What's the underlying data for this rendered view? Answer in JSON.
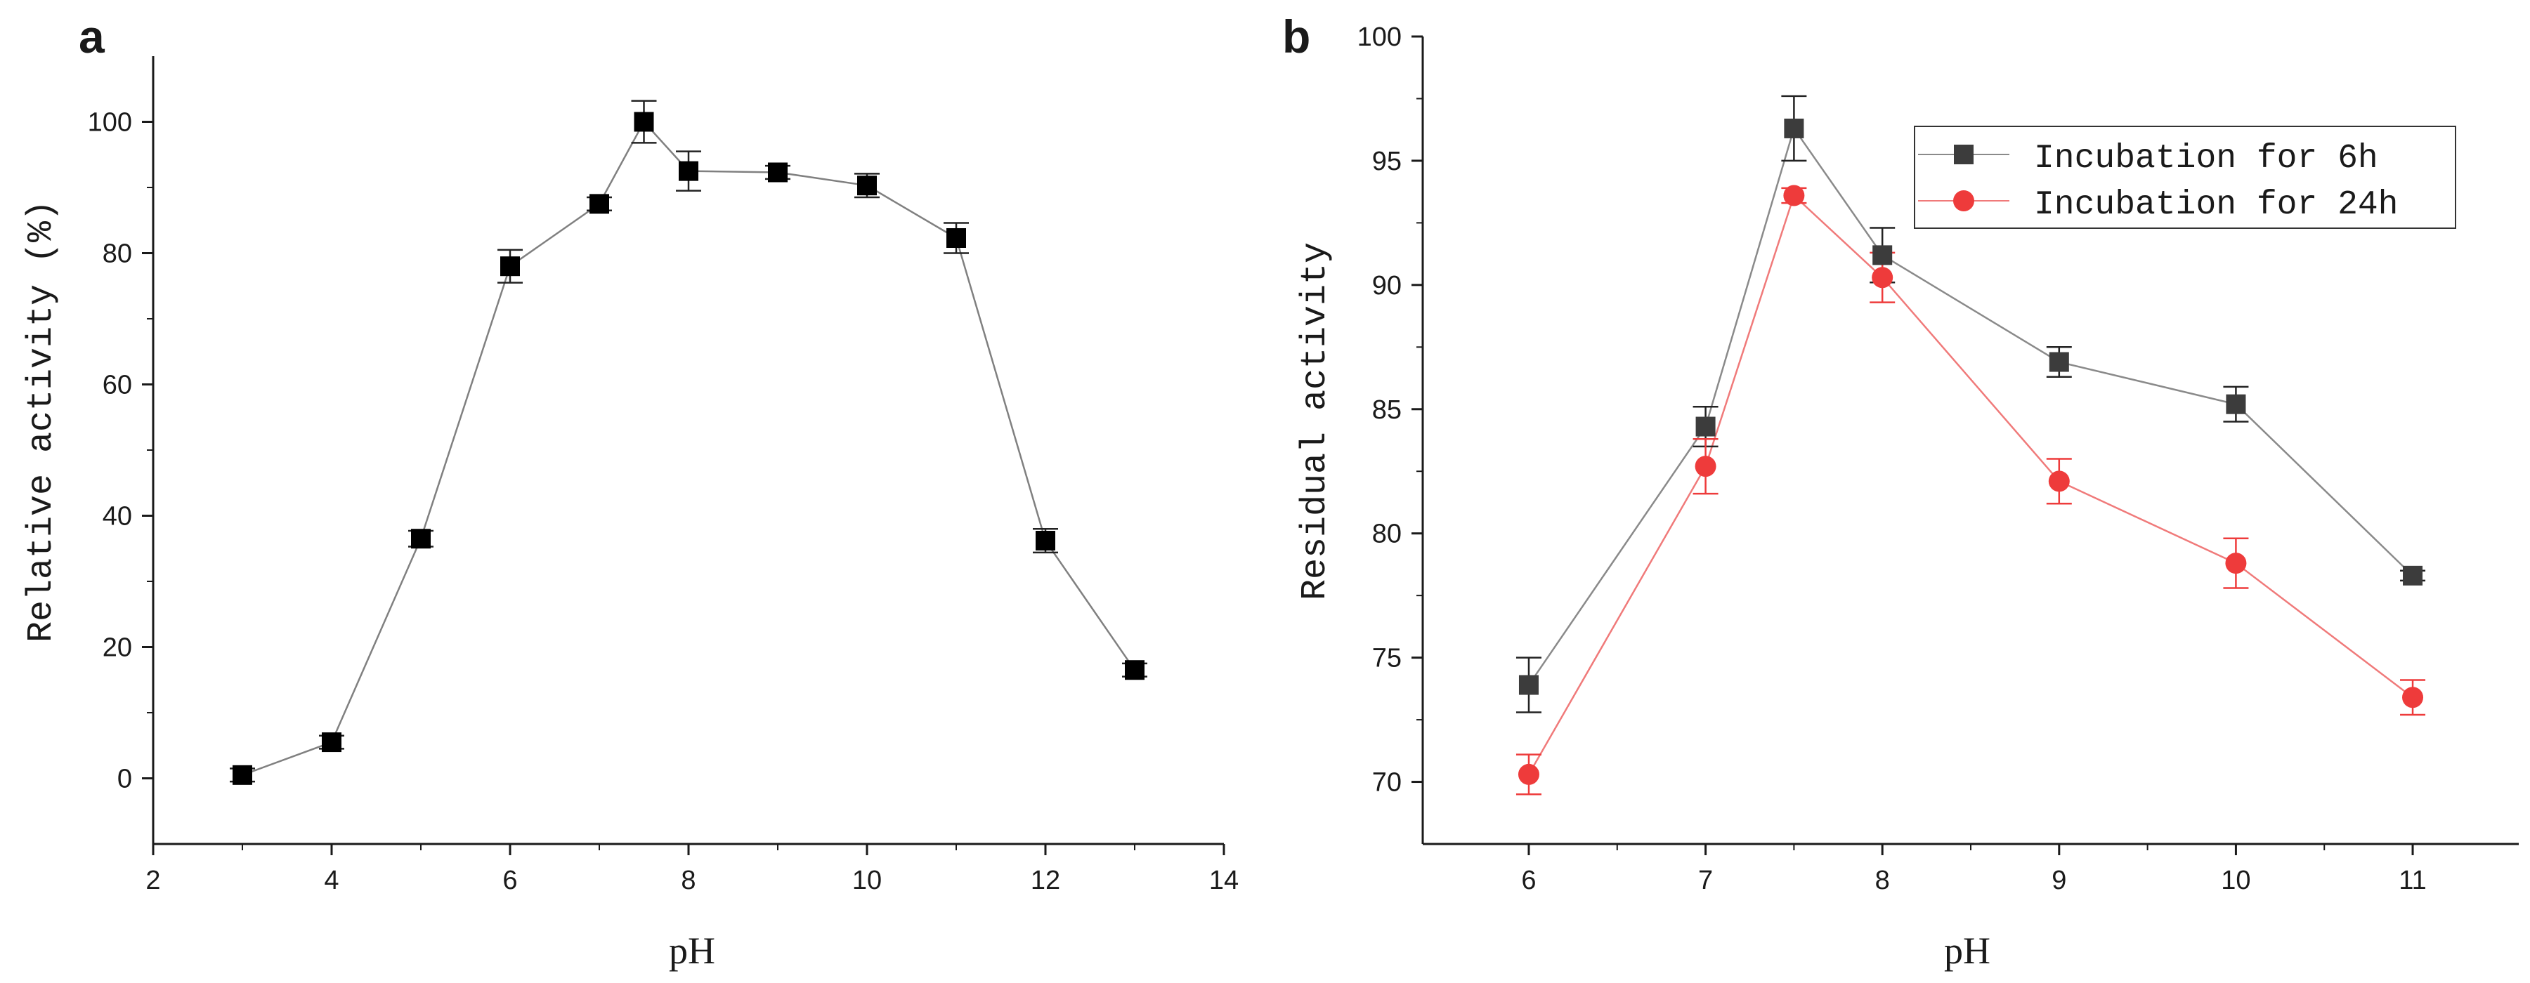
{
  "figure": {
    "panel_a_letter": "a",
    "panel_b_letter": "b"
  },
  "chart_data": [
    {
      "type": "line",
      "panel": "a",
      "title": "",
      "xlabel": "pH",
      "ylabel": "Relative activity (%)",
      "xlim": [
        2,
        14
      ],
      "ylim": [
        -10,
        110
      ],
      "xticks": [
        2,
        4,
        6,
        8,
        10,
        12,
        14
      ],
      "yticks": [
        0,
        20,
        40,
        60,
        80,
        100
      ],
      "grid": false,
      "series": [
        {
          "name": "Relative activity",
          "color": "#000000",
          "line_color": "#808080",
          "marker": "square",
          "x": [
            3,
            4,
            5,
            6,
            7,
            7.5,
            8,
            9,
            10,
            11,
            12,
            13
          ],
          "y": [
            0.5,
            5.5,
            36.5,
            78,
            87.5,
            100,
            92.5,
            92.3,
            90.3,
            82.3,
            36.2,
            16.5
          ],
          "error": [
            1.0,
            1.0,
            1.2,
            2.5,
            1.0,
            3.2,
            3.0,
            1.0,
            1.8,
            2.3,
            1.8,
            1.0
          ]
        }
      ]
    },
    {
      "type": "line",
      "panel": "b",
      "title": "",
      "xlabel": "pH",
      "ylabel": "Residual activity",
      "xlim": [
        5.4,
        11.6
      ],
      "ylim": [
        67.5,
        100
      ],
      "xticks": [
        6,
        7,
        8,
        9,
        10,
        11
      ],
      "yticks": [
        70,
        75,
        80,
        85,
        90,
        95,
        100
      ],
      "grid": false,
      "legend_position": "top-right",
      "series": [
        {
          "name": "Incubation for 6h",
          "color": "#3c3c3c",
          "line_color": "#8a8a8a",
          "marker": "square",
          "x": [
            6,
            7,
            7.5,
            8,
            9,
            10,
            11
          ],
          "y": [
            73.9,
            84.3,
            96.3,
            91.2,
            86.9,
            85.2,
            78.3
          ],
          "error": [
            1.1,
            0.8,
            1.3,
            1.1,
            0.6,
            0.7,
            0.2
          ]
        },
        {
          "name": "Incubation for 24h",
          "color": "#ee3b3b",
          "line_color": "#f07a7a",
          "marker": "circle",
          "x": [
            6,
            7,
            7.5,
            8,
            9,
            10,
            11
          ],
          "y": [
            70.3,
            82.7,
            93.6,
            90.3,
            82.1,
            78.8,
            73.4
          ],
          "error": [
            0.8,
            1.1,
            0.3,
            1.0,
            0.9,
            1.0,
            0.7
          ]
        }
      ]
    }
  ]
}
